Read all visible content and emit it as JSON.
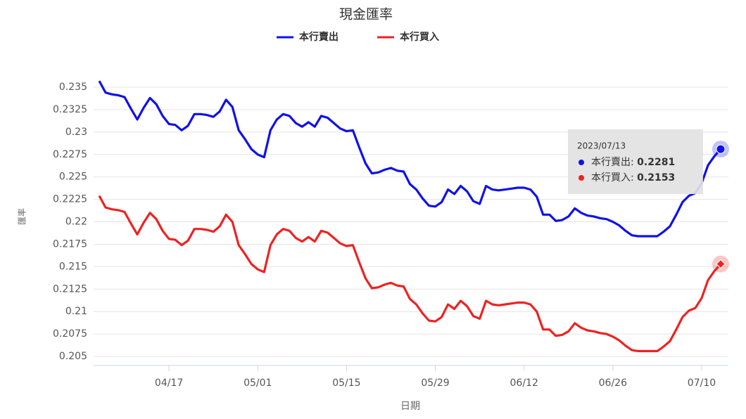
{
  "chart_data": {
    "type": "line",
    "title": "現金匯率",
    "x_label": "日期",
    "y_label": "匯率",
    "categories": [
      null,
      null,
      null,
      null,
      null,
      null,
      null,
      null,
      null,
      null,
      null,
      "04/17",
      null,
      null,
      null,
      null,
      null,
      null,
      null,
      null,
      null,
      null,
      null,
      null,
      null,
      "05/01",
      null,
      null,
      null,
      null,
      null,
      null,
      null,
      null,
      null,
      null,
      null,
      null,
      null,
      "05/15",
      null,
      null,
      null,
      null,
      null,
      null,
      null,
      null,
      null,
      null,
      null,
      null,
      null,
      "05/29",
      null,
      null,
      null,
      null,
      null,
      null,
      null,
      null,
      null,
      null,
      null,
      null,
      null,
      "06/12",
      null,
      null,
      null,
      null,
      null,
      null,
      null,
      null,
      null,
      null,
      null,
      null,
      null,
      "06/26",
      null,
      null,
      null,
      null,
      null,
      null,
      null,
      null,
      null,
      null,
      null,
      null,
      null,
      "07/10",
      null,
      null,
      null
    ],
    "series": [
      {
        "name": "本行賣出",
        "color": "#1010ee",
        "values": [
          0.2357,
          0.2344,
          0.2342,
          0.2341,
          0.2339,
          0.2326,
          0.2314,
          0.2327,
          0.2338,
          0.2331,
          0.2318,
          0.2309,
          0.2308,
          0.2302,
          0.2307,
          0.232,
          0.232,
          0.2319,
          0.2317,
          0.2323,
          0.2336,
          0.2328,
          0.2302,
          0.2292,
          0.2281,
          0.2275,
          0.2272,
          0.2302,
          0.2314,
          0.232,
          0.2318,
          0.231,
          0.2306,
          0.2311,
          0.2306,
          0.2318,
          0.2316,
          0.231,
          0.2304,
          0.2301,
          0.2302,
          0.2283,
          0.2265,
          0.2254,
          0.2255,
          0.2258,
          0.226,
          0.2257,
          0.2256,
          0.2242,
          0.2236,
          0.2226,
          0.2218,
          0.2217,
          0.2222,
          0.2236,
          0.2231,
          0.224,
          0.2234,
          0.2223,
          0.222,
          0.224,
          0.2236,
          0.2235,
          0.2236,
          0.2237,
          0.2238,
          0.2238,
          0.2236,
          0.2228,
          0.2208,
          0.2208,
          0.2201,
          0.2202,
          0.2206,
          0.2215,
          0.221,
          0.2207,
          0.2206,
          0.2204,
          0.2203,
          0.22,
          0.2196,
          0.219,
          0.2185,
          0.2184,
          0.2184,
          0.2184,
          0.2184,
          0.2189,
          0.2195,
          0.2208,
          0.2222,
          0.2229,
          0.2232,
          0.2243,
          0.2263,
          0.2273,
          0.2281
        ]
      },
      {
        "name": "本行買入",
        "color": "#ee2222",
        "values": [
          0.2229,
          0.2216,
          0.2214,
          0.2213,
          0.2211,
          0.2198,
          0.2186,
          0.2199,
          0.221,
          0.2203,
          0.219,
          0.2181,
          0.218,
          0.2174,
          0.2179,
          0.2192,
          0.2192,
          0.2191,
          0.2189,
          0.2195,
          0.2208,
          0.22,
          0.2174,
          0.2164,
          0.2153,
          0.2147,
          0.2144,
          0.2174,
          0.2186,
          0.2192,
          0.219,
          0.2182,
          0.2178,
          0.2183,
          0.2178,
          0.219,
          0.2188,
          0.2182,
          0.2176,
          0.2173,
          0.2174,
          0.2155,
          0.2137,
          0.2126,
          0.2127,
          0.213,
          0.2132,
          0.2129,
          0.2128,
          0.2114,
          0.2108,
          0.2098,
          0.209,
          0.2089,
          0.2094,
          0.2108,
          0.2103,
          0.2112,
          0.2106,
          0.2095,
          0.2092,
          0.2112,
          0.2108,
          0.2107,
          0.2108,
          0.2109,
          0.211,
          0.211,
          0.2108,
          0.21,
          0.208,
          0.208,
          0.2073,
          0.2074,
          0.2078,
          0.2087,
          0.2082,
          0.2079,
          0.2078,
          0.2076,
          0.2075,
          0.2072,
          0.2068,
          0.2062,
          0.2057,
          0.2056,
          0.2056,
          0.2056,
          0.2056,
          0.2061,
          0.2067,
          0.208,
          0.2094,
          0.2101,
          0.2104,
          0.2115,
          0.2135,
          0.2145,
          0.2153
        ]
      }
    ],
    "ylim": [
      0.204,
      0.237
    ],
    "yticks": [
      0.205,
      0.2075,
      0.21,
      0.2125,
      0.215,
      0.2175,
      0.22,
      0.2225,
      0.225,
      0.2275,
      0.23,
      0.2325,
      0.235
    ],
    "grid": true,
    "tooltip": {
      "title": "2023/07/13"
    }
  }
}
